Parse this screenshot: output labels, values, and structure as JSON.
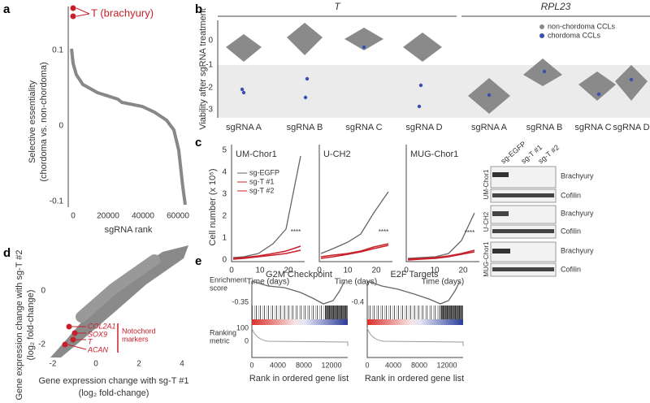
{
  "panels": {
    "a": "a",
    "b": "b",
    "c": "c",
    "d": "d",
    "e": "e"
  },
  "panel_a": {
    "annotation": "T (brachyury)",
    "y_label_1": "Selective essentiality",
    "y_label_2": "(chordoma vs. non-chordoma)",
    "yticks": [
      "0.1",
      "0",
      "-0.1"
    ],
    "xticks": [
      "0",
      "20000",
      "40000",
      "60000"
    ],
    "x_label": "sgRNA rank"
  },
  "panel_b": {
    "groups": [
      "T",
      "RPL23"
    ],
    "y_label": "Viability after sgRNA treatment",
    "yticks": [
      "0",
      "-1",
      "-2",
      "-3"
    ],
    "categories": [
      "sgRNA A",
      "sgRNA B",
      "sgRNA C",
      "sgRNA D",
      "sgRNA A",
      "sgRNA B",
      "sgRNA C",
      "sgRNA D"
    ],
    "legend": [
      "non-chordoma CCLs",
      "chordoma CCLs"
    ]
  },
  "panel_c": {
    "y_label": "Cell number (x 10⁵)",
    "plots": [
      {
        "title": "UM-Chor1",
        "yticks": [
          "0",
          "1",
          "2",
          "3",
          "4",
          "5"
        ]
      },
      {
        "title": "U-CH2"
      },
      {
        "title": "MUG-Chor1"
      }
    ],
    "xticks": [
      "0",
      "10",
      "20"
    ],
    "x_label": "Time (days)",
    "significance": "****",
    "legend": [
      "sg-EGFP",
      "sg-T #1",
      "sg-T #2"
    ],
    "blot": {
      "lanes": [
        "sg-EGFP",
        "sg-T #1",
        "sg-T #2"
      ],
      "cell_lines": [
        "UM-Chor1",
        "U-CH2",
        "MUG-Chor1"
      ],
      "proteins": [
        "Brachyury",
        "Cofilin"
      ]
    }
  },
  "panel_d": {
    "y_label_1": "Gene expression change with sg-T #2",
    "y_label_2": "(log₂ fold-change)",
    "x_label_1": "Gene expression change with sg-T #1",
    "x_label_2": "(log₂ fold-change)",
    "xticks": [
      "-2",
      "0",
      "2",
      "4"
    ],
    "yticks": [
      "0",
      "-2"
    ],
    "genes": [
      "COL2A1",
      "SOX9",
      "T",
      "ACAN"
    ],
    "marker_label_1": "Notochord",
    "marker_label_2": "markers"
  },
  "panel_e": {
    "plots": [
      {
        "title": "G2M Checkpoint",
        "min_label": "-0.35"
      },
      {
        "title": "E2F Targets",
        "min_label": "-0.4"
      }
    ],
    "score_label_1": "Enrichment",
    "score_label_2": "score",
    "metric_label_1": "Ranking",
    "metric_label_2": "metric",
    "metric_ticks": [
      "100",
      "0"
    ],
    "xticks": [
      "0",
      "4000",
      "8000",
      "12000"
    ],
    "x_label": "Rank in ordered gene list"
  }
}
